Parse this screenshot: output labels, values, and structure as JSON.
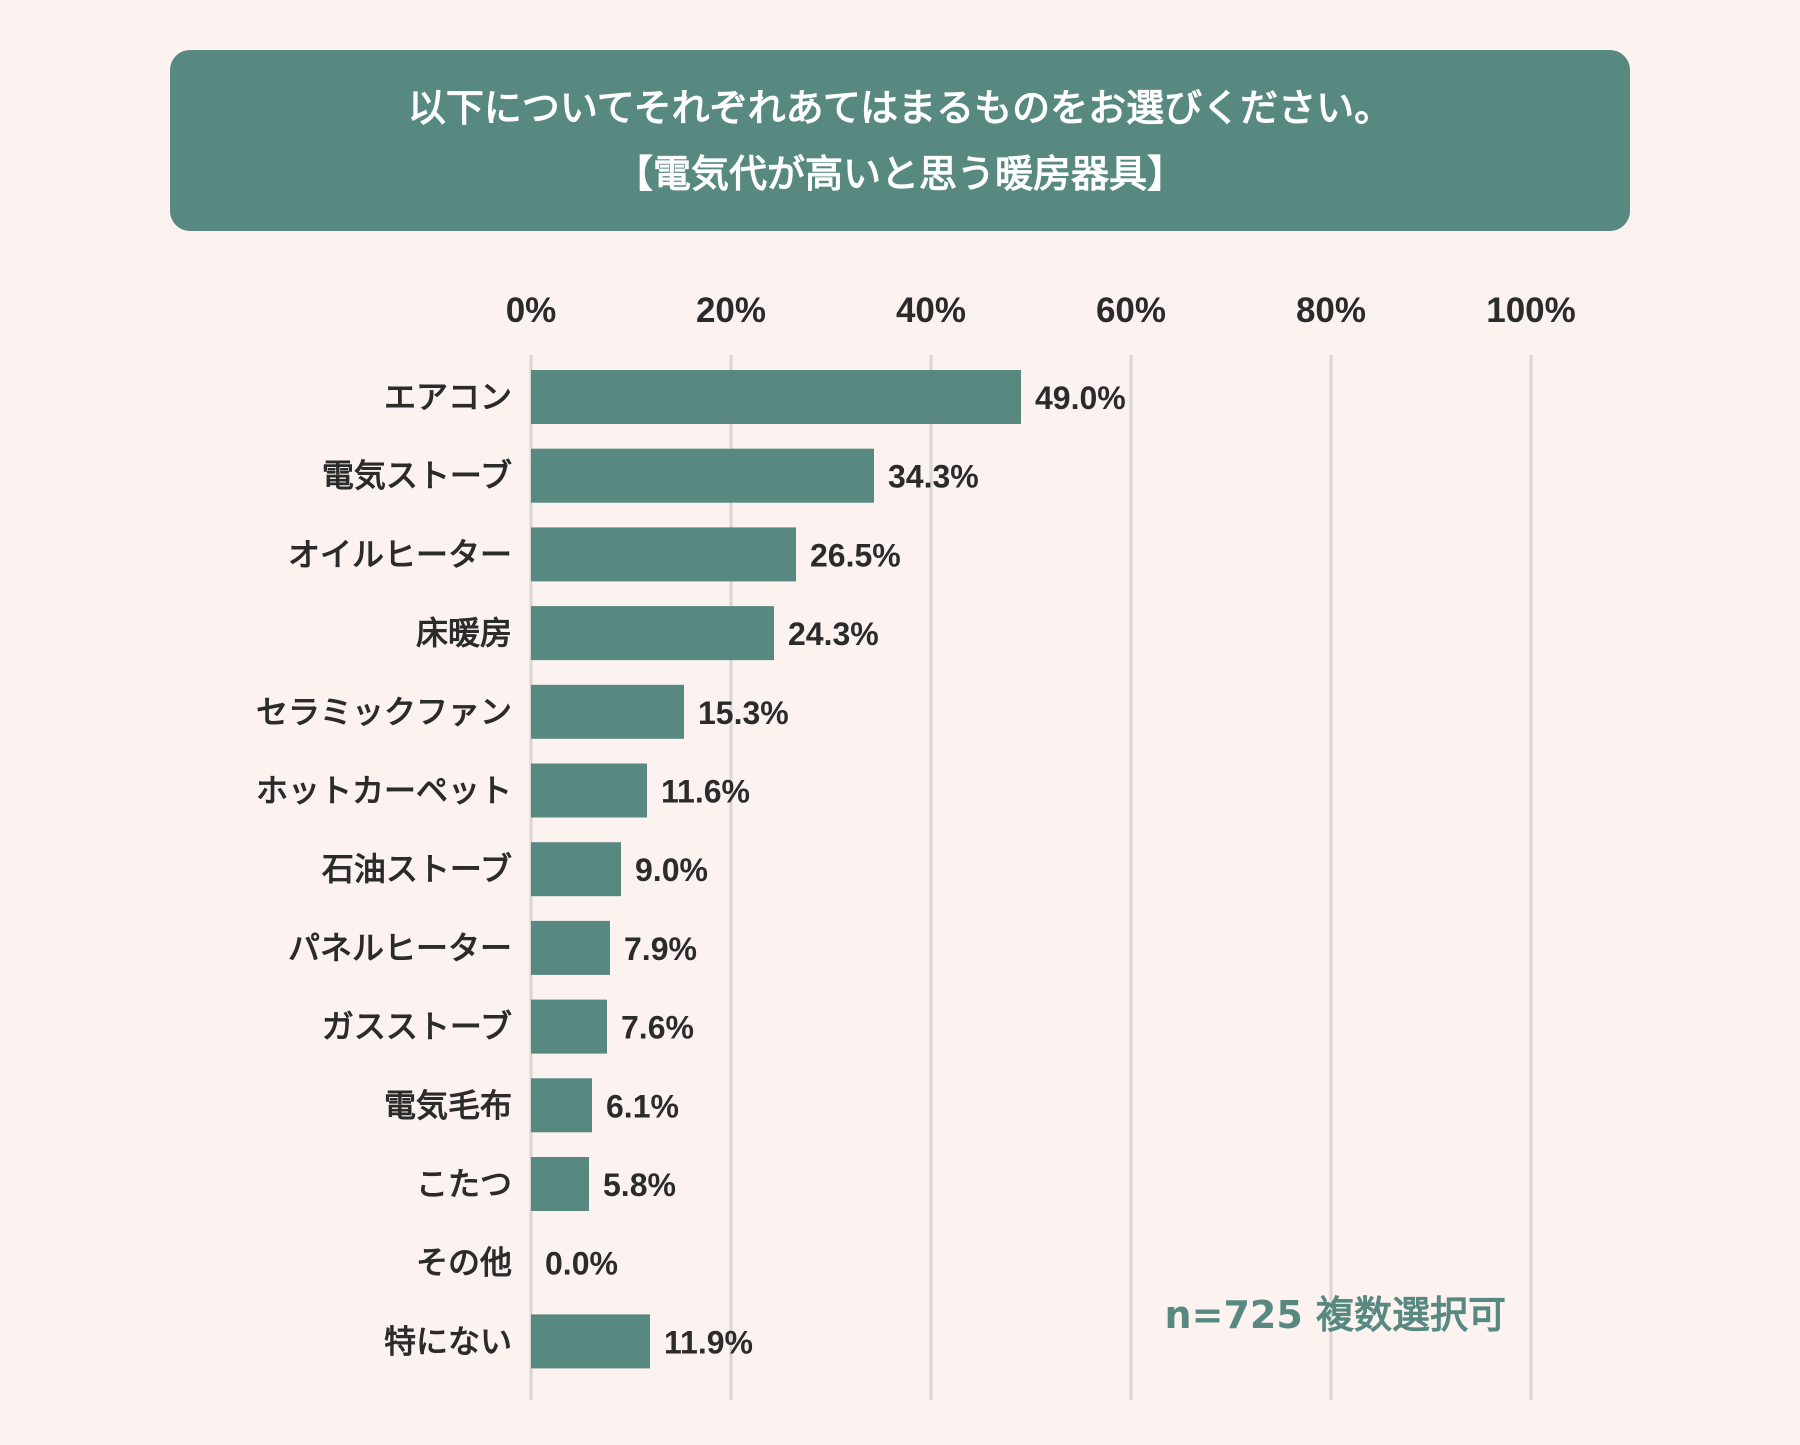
{
  "title": {
    "line1": "以下についてそれぞれあてはまるものをお選びください。",
    "line2": "【電気代が高いと思う暖房器具】"
  },
  "colors": {
    "background": "#fcf3f0",
    "accent": "#578981",
    "grid": "#d9d6d3",
    "text": "#2b2b2b"
  },
  "note": "n=725 複数選択可",
  "chart_data": {
    "type": "bar",
    "orientation": "horizontal",
    "categories": [
      "エアコン",
      "電気ストーブ",
      "オイルヒーター",
      "床暖房",
      "セラミックファン",
      "ホットカーペット",
      "石油ストーブ",
      "パネルヒーター",
      "ガスストーブ",
      "電気毛布",
      "こたつ",
      "その他",
      "特にない"
    ],
    "values": [
      49.0,
      34.3,
      26.5,
      24.3,
      15.3,
      11.6,
      9.0,
      7.9,
      7.6,
      6.1,
      5.8,
      0.0,
      11.9
    ],
    "value_labels": [
      "49.0%",
      "34.3%",
      "26.5%",
      "24.3%",
      "15.3%",
      "11.6%",
      "9.0%",
      "7.9%",
      "7.6%",
      "6.1%",
      "5.8%",
      "0.0%",
      "11.9%"
    ],
    "xlim": [
      0,
      100
    ],
    "x_ticks": [
      0,
      20,
      40,
      60,
      80,
      100
    ],
    "x_tick_labels": [
      "0%",
      "20%",
      "40%",
      "60%",
      "80%",
      "100%"
    ],
    "axis_position": "top",
    "grid": true,
    "legend": "none"
  }
}
